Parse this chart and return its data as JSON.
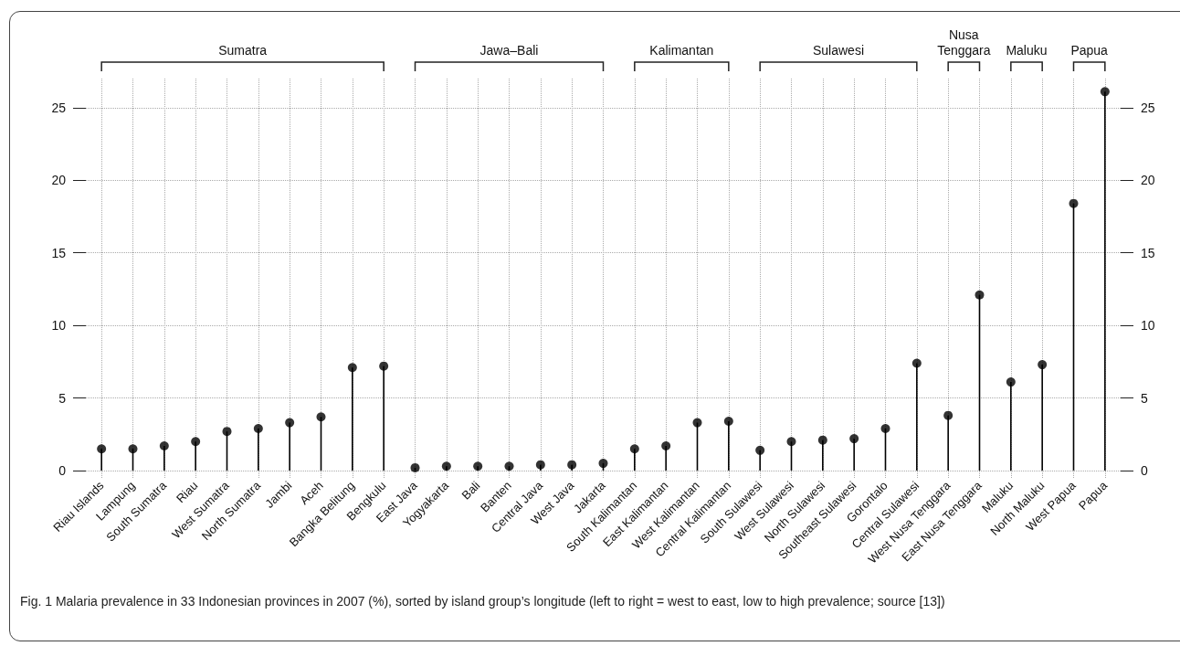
{
  "chart_data": {
    "type": "lollipop",
    "title": "Fig. 1  Malaria prevalence in 33 Indonesian provinces in 2007 (%), sorted by island group’s longitude (left to right = west to east, low to high prevalence; source [13])",
    "categories": [
      "Riau Islands",
      "Lampung",
      "South Sumatra",
      "Riau",
      "West Sumatra",
      "North Sumatra",
      "Jambi",
      "Aceh",
      "Bangka Belitung",
      "Bengkulu",
      "East Java",
      "Yogyakarta",
      "Bali",
      "Banten",
      "Central Java",
      "West Java",
      "Jakarta",
      "South Kalimantan",
      "East Kalimantan",
      "West Kalimantan",
      "Central Kalimantan",
      "South Sulawesi",
      "West Sulawesi",
      "North Sulawesi",
      "Southeast Sulawesi",
      "Gorontalo",
      "Central Sulawesi",
      "West Nusa Tenggara",
      "East Nusa Tenggara",
      "Maluku",
      "North Maluku",
      "West Papua",
      "Papua"
    ],
    "values": [
      1.5,
      1.5,
      1.7,
      2.0,
      2.7,
      2.9,
      3.3,
      3.7,
      7.1,
      7.2,
      0.2,
      0.3,
      0.3,
      0.3,
      0.4,
      0.4,
      0.5,
      1.5,
      1.7,
      3.3,
      3.4,
      1.4,
      2.0,
      2.1,
      2.2,
      2.9,
      7.4,
      3.8,
      12.1,
      6.1,
      7.3,
      18.4,
      26.1
    ],
    "color": "#000000",
    "marker": "circle",
    "ylim": [
      -0.5,
      27
    ],
    "yticks": [
      0,
      5,
      10,
      15,
      20,
      25
    ],
    "y2lim": [
      -0.5,
      27
    ],
    "y2ticks": [
      0,
      5,
      10,
      15,
      20,
      25
    ],
    "grid": true,
    "annotations": [
      "Sumatra",
      "Jawa–Bali",
      "Kalimantan",
      "Sulawesi",
      "Nusa Tenggara",
      "Maluku",
      "Papua"
    ]
  }
}
